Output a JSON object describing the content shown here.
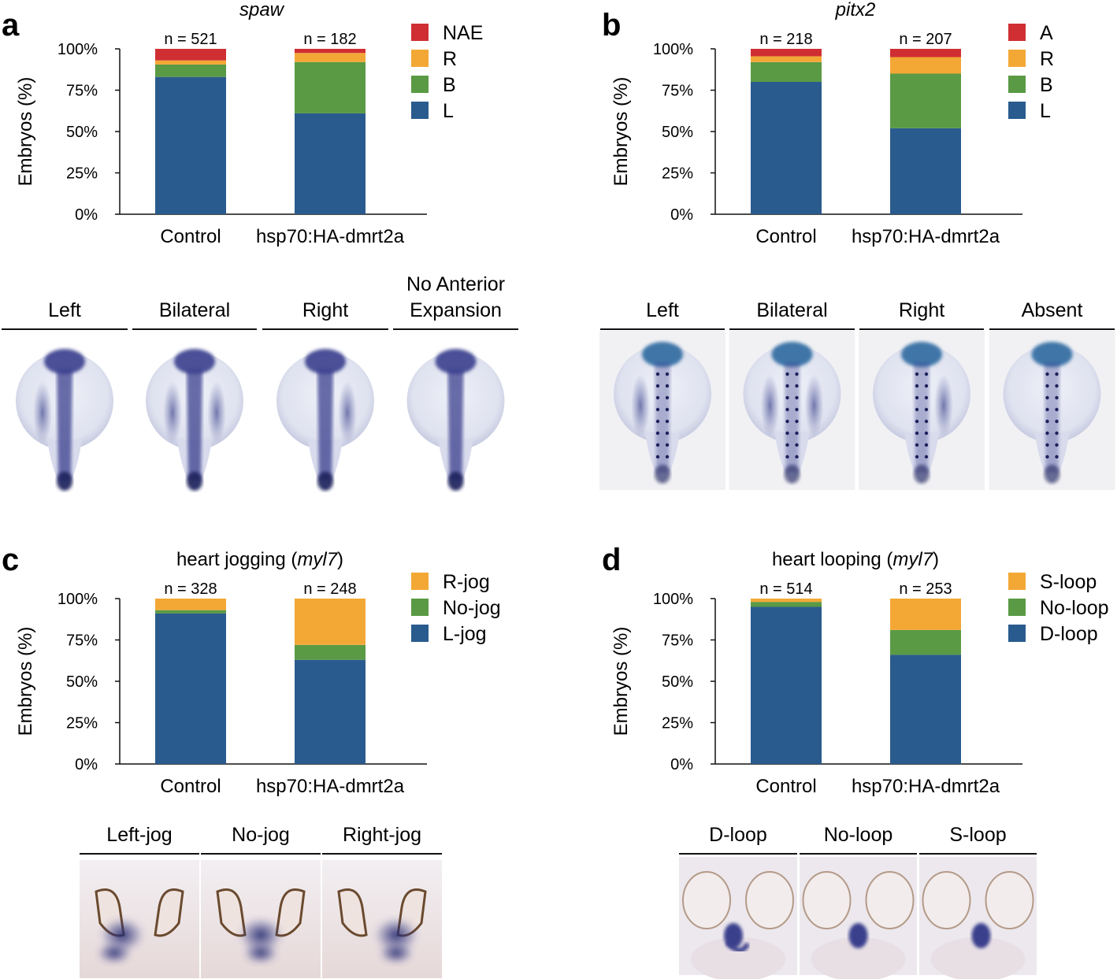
{
  "colors": {
    "blue": "#2a5b8e",
    "green": "#5a9a45",
    "orange": "#f3a836",
    "red": "#cf2f33",
    "stain": "#3a3f8e"
  },
  "chart_data": [
    {
      "panel": "a",
      "type": "bar",
      "stacked": true,
      "title": "spaw",
      "title_italic": true,
      "ylabel": "Embryos (%)",
      "yticks": [
        "0%",
        "25%",
        "50%",
        "75%",
        "100%"
      ],
      "ylim": [
        0,
        100
      ],
      "categories": [
        "Control",
        "hsp70:HA-dmrt2a"
      ],
      "n_labels": [
        "n = 521",
        "n = 182"
      ],
      "series": [
        {
          "name": "L",
          "color": "blue",
          "values": [
            83,
            61
          ]
        },
        {
          "name": "B",
          "color": "green",
          "values": [
            7.5,
            31
          ]
        },
        {
          "name": "R",
          "color": "orange",
          "values": [
            2.5,
            5.5
          ]
        },
        {
          "name": "NAE",
          "color": "red",
          "values": [
            7,
            2.5
          ]
        }
      ],
      "legend_position": "top-right"
    },
    {
      "panel": "b",
      "type": "bar",
      "stacked": true,
      "title": "pitx2",
      "title_italic": true,
      "ylabel": "Embryos (%)",
      "yticks": [
        "0%",
        "25%",
        "50%",
        "75%",
        "100%"
      ],
      "ylim": [
        0,
        100
      ],
      "categories": [
        "Control",
        "hsp70:HA-dmrt2a"
      ],
      "n_labels": [
        "n = 218",
        "n = 207"
      ],
      "series": [
        {
          "name": "L",
          "color": "blue",
          "values": [
            80,
            52
          ]
        },
        {
          "name": "B",
          "color": "green",
          "values": [
            12,
            33
          ]
        },
        {
          "name": "R",
          "color": "orange",
          "values": [
            3.5,
            10
          ]
        },
        {
          "name": "A",
          "color": "red",
          "values": [
            4.5,
            5
          ]
        }
      ],
      "legend_position": "top-right"
    },
    {
      "panel": "c",
      "type": "bar",
      "stacked": true,
      "title": "heart jogging (myl7)",
      "title_italic": false,
      "ylabel": "Embryos (%)",
      "yticks": [
        "0%",
        "25%",
        "50%",
        "75%",
        "100%"
      ],
      "ylim": [
        0,
        100
      ],
      "categories": [
        "Control",
        "hsp70:HA-dmrt2a"
      ],
      "n_labels": [
        "n = 328",
        "n = 248"
      ],
      "series": [
        {
          "name": "L-jog",
          "color": "blue",
          "values": [
            91,
            63
          ]
        },
        {
          "name": "No-jog",
          "color": "green",
          "values": [
            2,
            9
          ]
        },
        {
          "name": "R-jog",
          "color": "orange",
          "values": [
            7,
            28
          ]
        }
      ],
      "legend_position": "top-right"
    },
    {
      "panel": "d",
      "type": "bar",
      "stacked": true,
      "title": "heart looping (myl7)",
      "title_italic": false,
      "ylabel": "Embryos (%)",
      "yticks": [
        "0%",
        "25%",
        "50%",
        "75%",
        "100%"
      ],
      "ylim": [
        0,
        100
      ],
      "categories": [
        "Control",
        "hsp70:HA-dmrt2a"
      ],
      "n_labels": [
        "n = 514",
        "n = 253"
      ],
      "series": [
        {
          "name": "D-loop",
          "color": "blue",
          "values": [
            95,
            66
          ]
        },
        {
          "name": "No-loop",
          "color": "green",
          "values": [
            3,
            15
          ]
        },
        {
          "name": "S-loop",
          "color": "orange",
          "values": [
            2,
            19
          ]
        }
      ],
      "legend_position": "top-right"
    }
  ],
  "photo_rows": [
    {
      "panel": "a",
      "kind": "embryo",
      "labels": [
        "Left",
        "Bilateral",
        "Right",
        "No Anterior\nExpansion"
      ],
      "stain": [
        "left",
        "bilateral",
        "right",
        "none"
      ]
    },
    {
      "panel": "b",
      "kind": "embryo-b",
      "labels": [
        "Left",
        "Bilateral",
        "Right",
        "Absent"
      ],
      "stain": [
        "left",
        "bilateral",
        "right",
        "none"
      ]
    },
    {
      "panel": "c",
      "kind": "heart-jog",
      "labels": [
        "Left-jog",
        "No-jog",
        "Right-jog"
      ],
      "stain": [
        "left",
        "mid",
        "right"
      ]
    },
    {
      "panel": "d",
      "kind": "heart-loop",
      "labels": [
        "D-loop",
        "No-loop",
        "S-loop"
      ],
      "stain": [
        "d",
        "none",
        "s"
      ]
    }
  ]
}
